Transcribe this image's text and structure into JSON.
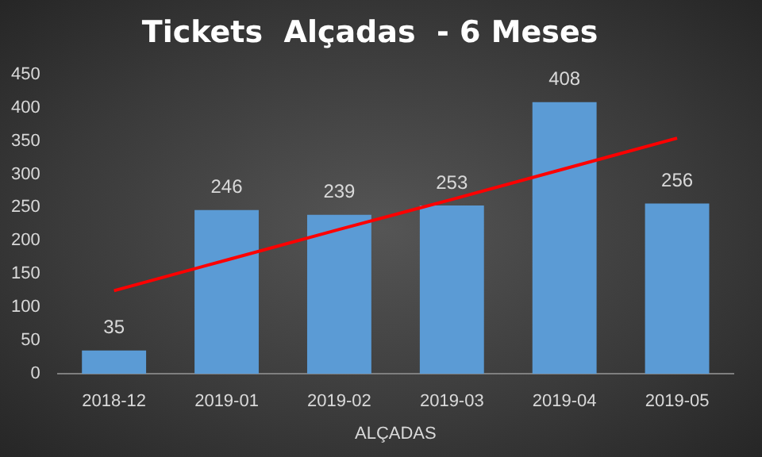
{
  "chart_data": {
    "type": "bar",
    "title": "Tickets  Alçadas  - 6 Meses",
    "xlabel": "ALÇADAS",
    "categories": [
      "2018-12",
      "2019-01",
      "2019-02",
      "2019-03",
      "2019-04",
      "2019-05"
    ],
    "series": [
      {
        "color": "#5b9bd5",
        "values": [
          35,
          246,
          239,
          253,
          408,
          256
        ],
        "value_labels": [
          "35",
          "246",
          "239",
          "253",
          "408",
          "256"
        ]
      },
      {
        "type": "line",
        "color": "#ff0000",
        "values": [
          125,
          171,
          217,
          262,
          308,
          354
        ],
        "marker": "none"
      }
    ],
    "ylim": [
      0,
      450
    ],
    "yticks": [
      0,
      50,
      100,
      150,
      200,
      250,
      300,
      350,
      400,
      450
    ],
    "grid": false,
    "legend": false
  }
}
